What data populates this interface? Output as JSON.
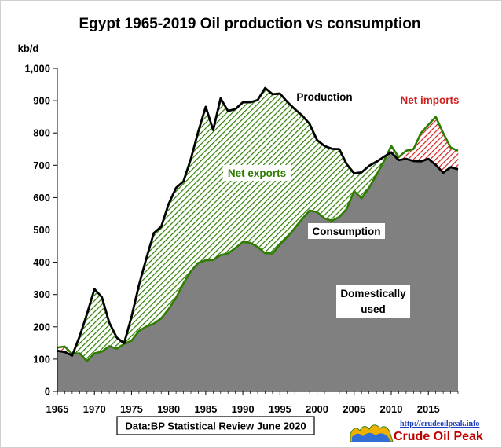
{
  "chart_data": {
    "type": "area",
    "title": "Egypt 1965-2019 Oil production  vs consumption",
    "ylabel": "kb/d",
    "xlabel": "",
    "ylim": [
      0,
      1000
    ],
    "xlim": [
      1965,
      2019
    ],
    "yticks": [
      0,
      100,
      200,
      300,
      400,
      500,
      600,
      700,
      800,
      900,
      1000
    ],
    "ytick_labels": [
      "0",
      "100",
      "200",
      "300",
      "400",
      "500",
      "600",
      "700",
      "800",
      "900",
      "1,000"
    ],
    "xticks": [
      1965,
      1970,
      1975,
      1980,
      1985,
      1990,
      1995,
      2000,
      2005,
      2010,
      2015
    ],
    "grid": false,
    "x": [
      1965,
      1966,
      1967,
      1968,
      1969,
      1970,
      1971,
      1972,
      1973,
      1974,
      1975,
      1976,
      1977,
      1978,
      1979,
      1980,
      1981,
      1982,
      1983,
      1984,
      1985,
      1986,
      1987,
      1988,
      1989,
      1990,
      1991,
      1992,
      1993,
      1994,
      1995,
      1996,
      1997,
      1998,
      1999,
      2000,
      2001,
      2002,
      2003,
      2004,
      2005,
      2006,
      2007,
      2008,
      2009,
      2010,
      2011,
      2012,
      2013,
      2014,
      2015,
      2016,
      2017,
      2018,
      2019
    ],
    "series": [
      {
        "name": "Production",
        "values": [
          126,
          122,
          111,
          170,
          240,
          317,
          292,
          213,
          167,
          149,
          231,
          329,
          412,
          490,
          510,
          580,
          630,
          650,
          720,
          805,
          881,
          809,
          907,
          868,
          874,
          895,
          895,
          902,
          939,
          920,
          922,
          896,
          874,
          854,
          828,
          778,
          760,
          751,
          750,
          703,
          675,
          678,
          698,
          711,
          726,
          740,
          716,
          720,
          713,
          712,
          720,
          701,
          677,
          694,
          688
        ],
        "color": "#000000"
      },
      {
        "name": "Consumption",
        "values": [
          136,
          139,
          116,
          118,
          94,
          118,
          123,
          140,
          132,
          147,
          157,
          187,
          201,
          210,
          226,
          255,
          290,
          335,
          372,
          398,
          406,
          407,
          422,
          427,
          444,
          463,
          460,
          447,
          428,
          427,
          455,
          478,
          506,
          534,
          560,
          555,
          536,
          528,
          540,
          565,
          620,
          598,
          630,
          670,
          712,
          760,
          725,
          745,
          750,
          800,
          825,
          850,
          800,
          755,
          745
        ],
        "color": "#2e7d00"
      }
    ],
    "annotations": [
      "Production",
      "Net exports",
      "Net imports",
      "Consumption",
      "Domestically",
      "used"
    ],
    "source": "Data:BP Statistical Review June 2020",
    "brand_url": "http://crudeoilpeak.info",
    "brand_name": "Crude Oil Peak",
    "colors": {
      "domestic_fill": "#808080",
      "net_exports_hatch": "#2e7d00",
      "net_imports_hatch": "#d22020",
      "production_line": "#000000",
      "consumption_line": "#2e7d00"
    }
  }
}
